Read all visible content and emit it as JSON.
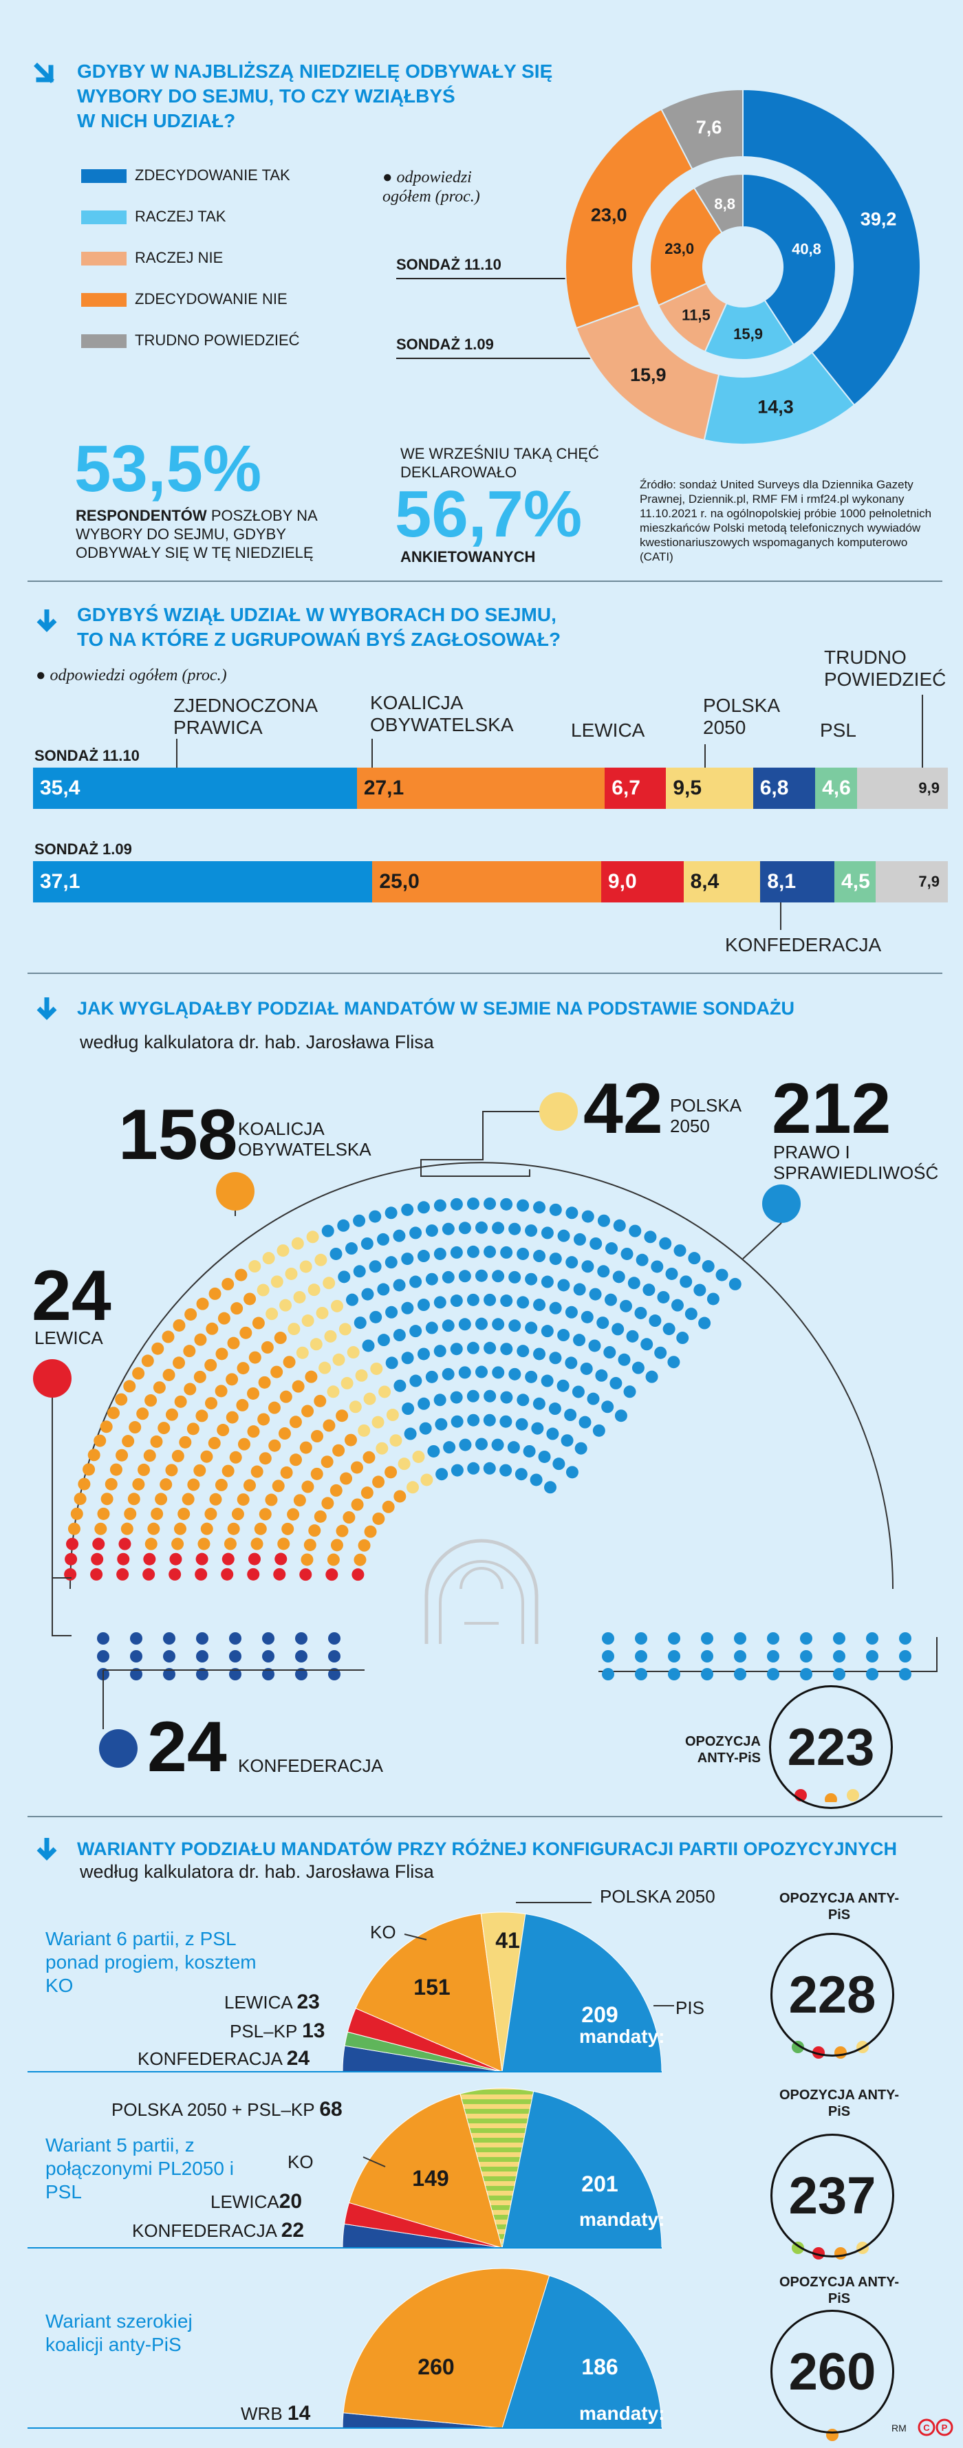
{
  "section1": {
    "title_line1": "GDYBY W NAJBLIŻSZĄ NIEDZIELĘ ODBYWAŁY SIĘ",
    "title_line2": "WYBORY DO SEJMU, TO CZY WZIĄŁBYŚ",
    "title_line3": "W NICH UDZIAŁ?",
    "legend": [
      {
        "label": "ZDECYDOWANIE TAK",
        "color": "#0d78c8"
      },
      {
        "label": "RACZEJ TAK",
        "color": "#5cc8f1"
      },
      {
        "label": "RACZEJ NIE",
        "color": "#f2ad80"
      },
      {
        "label": "ZDECYDOWANIE NIE",
        "color": "#f6892e"
      },
      {
        "label": "TRUDNO POWIEDZIEĆ",
        "color": "#9c9c9c"
      }
    ],
    "note": "odpowiedzi ogółem (proc.)",
    "outer_label": "SONDAŻ 11.10",
    "inner_label": "SONDAŻ 1.09",
    "stat1_value": "53,5%",
    "stat1_text_bold": "RESPONDENTÓW",
    "stat1_text": "POSZŁOBY NA WYBORY DO SEJMU, GDYBY ODBYWAŁY SIĘ W TĘ NIEDZIELĘ",
    "stat2_pre": "WE WRZEŚNIU TAKĄ CHĘĆ DEKLAROWAŁO",
    "stat2_value": "56,7%",
    "stat2_post": "ANKIETOWANYCH",
    "source": "Źródło: sondaż United Surveys dla Dziennika Gazety Prawnej, Dziennik.pl, RMF FM i rmf24.pl wykonany 11.10.2021 r. na ogólnopolskiej próbie 1000 pełnoletnich mieszkańców Polski metodą telefonicznych wywiadów kwestionariuszowych wspomaganych komputerowo (CATI)"
  },
  "section2": {
    "title_line1": "GDYBYŚ WZIĄŁ UDZIAŁ W WYBORACH DO SEJMU,",
    "title_line2": "TO NA KTÓRE Z UGRUPOWAŃ BYŚ ZAGŁOSOWAŁ?",
    "note": "odpowiedzi ogółem (proc.)",
    "row1_label": "SONDAŻ 11.10",
    "row2_label": "SONDAŻ 1.09",
    "party_labels": {
      "zp": "ZJEDNOCZONA PRAWICA",
      "ko": "KOALICJA OBYWATELSKA",
      "lewica": "LEWICA",
      "pl2050": "POLSKA 2050",
      "psl": "PSL",
      "trudno": "TRUDNO POWIEDZIEĆ",
      "konf": "KONFEDERACJA"
    }
  },
  "section3": {
    "title": "JAK WYGLĄDAŁBY PODZIAŁ MANDATÓW W SEJMIE NA PODSTAWIE SONDAŻU",
    "subtitle": "według kalkulatora dr. hab. Jarosława Flisa",
    "ko_num": "158",
    "ko_lbl": "KOALICJA OBYWATELSKA",
    "pl_num": "42",
    "pl_lbl": "POLSKA 2050",
    "pis_num": "212",
    "pis_lbl": "PRAWO I SPRAWIEDLIWOŚĆ",
    "lew_num": "24",
    "lew_lbl": "LEWICA",
    "konf_num": "24",
    "konf_lbl": "KONFEDERACJA",
    "opp_lbl": "OPOZYCJA ANTY-PiS",
    "opp_num": "223"
  },
  "section4": {
    "title": "WARIANTY PODZIAŁU MANDATÓW PRZY RÓŻNEJ KONFIGURACJI PARTII OPOZYCYJNYCH",
    "subtitle": "według kalkulatora dr. hab. Jarosława Flisa",
    "mandaty": "mandaty:",
    "opp_lbl": "OPOZYCJA ANTY-PiS",
    "variants": [
      {
        "name": "Wariant 6 partii, z PSL ponad progiem, kosztem KO",
        "opp": "228",
        "pis": "209",
        "ko": "151",
        "pl": "41",
        "lew": "23",
        "psl": "13",
        "konf": "24",
        "lbl_pl": "POLSKA 2050",
        "lbl_ko": "KO",
        "lbl_pis": "PIS",
        "lbl_lew": "LEWICA",
        "lbl_psl": "PSL–KP",
        "lbl_konf": "KONFEDERACJA"
      },
      {
        "name": "Wariant 5 partii, z połączonymi PL2050 i PSL",
        "opp": "237",
        "pis": "201",
        "ko": "149",
        "plpsl": "68",
        "lew": "20",
        "konf": "22",
        "lbl_plpsl": "POLSKA 2050 + PSL–KP",
        "lbl_ko": "KO",
        "lbl_lew": "LEWICA",
        "lbl_konf": "KONFEDERACJA"
      },
      {
        "name": "Wariant szerokiej koalicji anty-PiS",
        "opp": "260",
        "pis": "186",
        "koal": "260",
        "wrb": "14",
        "lbl_wrb": "WRB"
      }
    ]
  },
  "footer": "RM",
  "chart_data": [
    {
      "type": "pie",
      "title": "GDYBY W NAJBLIŻSZĄ NIEDZIELĘ ODBYWAŁY SIĘ WYBORY DO SEJMU, TO CZY WZIĄŁBYŚ W NICH UDZIAŁ?",
      "categories": [
        "ZDECYDOWANIE TAK",
        "RACZEJ TAK",
        "RACZEJ NIE",
        "ZDECYDOWANIE NIE",
        "TRUDNO POWIEDZIEĆ"
      ],
      "series": [
        {
          "name": "SONDAŻ 11.10",
          "values": [
            39.2,
            14.3,
            15.9,
            23.0,
            7.6
          ],
          "labels": [
            "39,2",
            "14,3",
            "15,9",
            "23,0",
            "7,6"
          ]
        },
        {
          "name": "SONDAŻ 1.09",
          "values": [
            40.8,
            15.9,
            11.5,
            23.0,
            8.8
          ],
          "labels": [
            "40,8",
            "15,9",
            "11,5",
            "23,0",
            "8,8"
          ]
        }
      ]
    },
    {
      "type": "bar",
      "title": "GDYBYŚ WZIĄŁ UDZIAŁ W WYBORACH DO SEJMU, TO NA KTÓRE Z UGRUPOWAŃ BYŚ ZAGŁOSOWAŁ?",
      "categories": [
        "ZJEDNOCZONA PRAWICA",
        "KOALICJA OBYWATELSKA",
        "LEWICA",
        "POLSKA 2050",
        "KONFEDERACJA",
        "PSL",
        "TRUDNO POWIEDZIEĆ"
      ],
      "colors": [
        "#0b8ed9",
        "#f6892e",
        "#e3202b",
        "#f7d97b",
        "#1f4e9c",
        "#7ccba0",
        "#cfcfcf"
      ],
      "series": [
        {
          "name": "SONDAŻ 11.10",
          "values": [
            35.4,
            27.1,
            6.7,
            9.5,
            6.8,
            4.6,
            9.9
          ],
          "labels": [
            "35,4",
            "27,1",
            "6,7",
            "9,5",
            "6,8",
            "4,6",
            "9,9"
          ]
        },
        {
          "name": "SONDAŻ 1.09",
          "values": [
            37.1,
            25.0,
            9.0,
            8.4,
            8.1,
            4.5,
            7.9
          ],
          "labels": [
            "37,1",
            "25,0",
            "9,0",
            "8,4",
            "8,1",
            "4,5",
            "7,9"
          ]
        }
      ]
    },
    {
      "type": "pie",
      "title": "JAK WYGLĄDAŁBY PODZIAŁ MANDATÓW W SEJMIE NA PODSTAWIE SONDAŻU",
      "categories": [
        "LEWICA",
        "KOALICJA OBYWATELSKA",
        "POLSKA 2050",
        "PRAWO I SPRAWIEDLIWOŚĆ",
        "KONFEDERACJA"
      ],
      "values": [
        24,
        158,
        42,
        212,
        24
      ],
      "colors": [
        "#e3202b",
        "#f39a24",
        "#f7d97b",
        "#1b8fd4",
        "#1f4e9c"
      ]
    },
    {
      "type": "pie",
      "title": "Wariant 6 partii, z PSL ponad progiem, kosztem KO",
      "categories": [
        "KONFEDERACJA",
        "PSL–KP",
        "LEWICA",
        "KO",
        "POLSKA 2050",
        "PIS"
      ],
      "values": [
        24,
        13,
        23,
        151,
        41,
        209
      ],
      "colors": [
        "#1f4e9c",
        "#5fb55a",
        "#e3202b",
        "#f39a24",
        "#f7d97b",
        "#1b8fd4"
      ]
    },
    {
      "type": "pie",
      "title": "Wariant 5 partii, z połączonymi PL2050 i PSL",
      "categories": [
        "KONFEDERACJA",
        "LEWICA",
        "KO",
        "POLSKA 2050 + PSL–KP",
        "PIS"
      ],
      "values": [
        22,
        20,
        149,
        68,
        201
      ],
      "colors": [
        "#1f4e9c",
        "#e3202b",
        "#f39a24",
        "#9bcf4a",
        "#1b8fd4"
      ]
    },
    {
      "type": "pie",
      "title": "Wariant szerokiej koalicji anty-PiS",
      "categories": [
        "WRB",
        "koalicja anty-PiS",
        "PIS"
      ],
      "values": [
        14,
        260,
        186
      ],
      "colors": [
        "#1f4e9c",
        "#f39a24",
        "#1b8fd4"
      ]
    }
  ]
}
